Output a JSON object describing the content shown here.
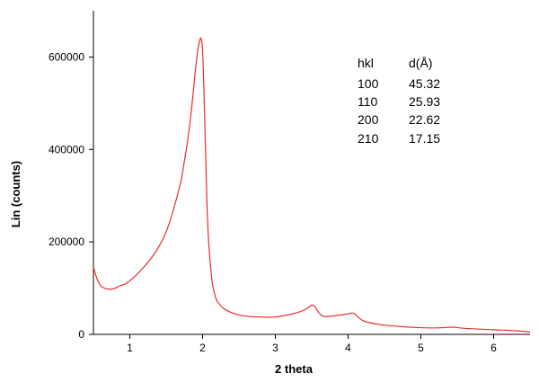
{
  "chart_data": {
    "type": "line",
    "title": "",
    "xlabel": "2 theta",
    "ylabel": "Lin (counts)",
    "xlim": [
      0.5,
      6.5
    ],
    "ylim": [
      0,
      700000
    ],
    "grid": false,
    "legend": "none",
    "x_ticks": [
      1,
      2,
      3,
      4,
      5,
      6
    ],
    "x_tick_labels": [
      "1",
      "2",
      "3",
      "4",
      "5",
      "6"
    ],
    "y_ticks": [
      0,
      200000,
      400000,
      600000
    ],
    "y_tick_labels": [
      "0",
      "200000",
      "400000",
      "600000"
    ],
    "line_color": "#ee2c2c",
    "series": [
      {
        "x": [
          0.5,
          0.55,
          0.6,
          0.65,
          0.7,
          0.75,
          0.8,
          0.85,
          0.9,
          0.95,
          1.0,
          1.1,
          1.2,
          1.3,
          1.4,
          1.5,
          1.6,
          1.7,
          1.75,
          1.8,
          1.85,
          1.9,
          1.93,
          1.96,
          1.98,
          2.0,
          2.02,
          2.04,
          2.06,
          2.08,
          2.1,
          2.12,
          2.14,
          2.17,
          2.2,
          2.25,
          2.3,
          2.4,
          2.5,
          2.6,
          2.7,
          2.8,
          2.9,
          3.0,
          3.1,
          3.2,
          3.3,
          3.4,
          3.45,
          3.5,
          3.53,
          3.56,
          3.6,
          3.65,
          3.7,
          3.8,
          3.9,
          4.0,
          4.05,
          4.08,
          4.12,
          4.2,
          4.3,
          4.5,
          4.8,
          5.0,
          5.2,
          5.35,
          5.45,
          5.6,
          6.0,
          6.3,
          6.5
        ],
        "y": [
          145000,
          120000,
          105000,
          100000,
          98000,
          98000,
          100000,
          104000,
          107000,
          110000,
          116000,
          130000,
          147000,
          166000,
          190000,
          222000,
          270000,
          330000,
          375000,
          425000,
          490000,
          570000,
          610000,
          635000,
          640000,
          615000,
          520000,
          400000,
          285000,
          210000,
          165000,
          130000,
          105000,
          85000,
          72000,
          62000,
          55000,
          47000,
          42000,
          39500,
          38000,
          37500,
          37000,
          37500,
          40000,
          43000,
          47000,
          53000,
          58000,
          63000,
          62000,
          56000,
          46000,
          40000,
          38500,
          40000,
          42000,
          44500,
          46000,
          45000,
          40000,
          30000,
          25000,
          20000,
          16000,
          14500,
          14000,
          15000,
          15500,
          13000,
          10000,
          8000,
          5000
        ]
      }
    ]
  },
  "annotation": {
    "header": [
      "hkl",
      "d(Å)"
    ],
    "rows": [
      [
        "100",
        "45.32"
      ],
      [
        "110",
        "25.93"
      ],
      [
        "200",
        "22.62"
      ],
      [
        "210",
        "17.15"
      ]
    ]
  }
}
